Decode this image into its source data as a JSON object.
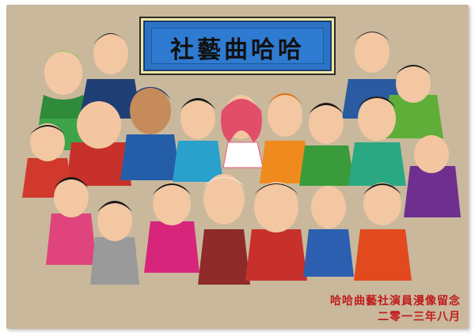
{
  "plaque": {
    "title": "社藝曲哈哈"
  },
  "caption": {
    "line1": "哈哈曲藝社演員漫像留念",
    "line2": "二零一三年八月"
  },
  "colors": {
    "board": "#c9b89c",
    "plaque": "#2c73c5",
    "caption": "#c01a1a"
  }
}
